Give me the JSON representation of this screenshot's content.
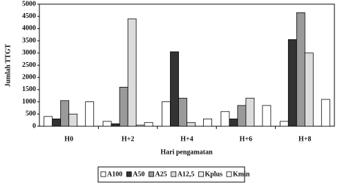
{
  "chart_data": {
    "type": "bar",
    "y_label": "Jumlah TTGT",
    "x_label": "Hari pengamatan",
    "categories": [
      "H0",
      "H+2",
      "H+4",
      "H+6",
      "H+8"
    ],
    "series": [
      {
        "name": "A100",
        "color": "#ffffff",
        "values": [
          400,
          200,
          1000,
          600,
          200
        ]
      },
      {
        "name": "A50",
        "color": "#333333",
        "values": [
          300,
          100,
          3050,
          300,
          3550
        ]
      },
      {
        "name": "A25",
        "color": "#9a9a9a",
        "values": [
          1050,
          1600,
          1150,
          850,
          4650
        ]
      },
      {
        "name": "A12,5",
        "color": "#dcdcdc",
        "values": [
          500,
          4400,
          150,
          1150,
          3000
        ]
      },
      {
        "name": "Kplus",
        "color": "#eeeeee",
        "values": [
          0,
          50,
          0,
          0,
          0
        ]
      },
      {
        "name": "Kmin",
        "color": "#ffffff",
        "values": [
          1000,
          150,
          300,
          850,
          1100
        ]
      }
    ],
    "ylim": [
      0,
      5000
    ],
    "yticks": [
      0,
      500,
      1000,
      1500,
      2000,
      2500,
      3000,
      3500,
      4000,
      4500,
      5000
    ],
    "legend": "bottom"
  }
}
